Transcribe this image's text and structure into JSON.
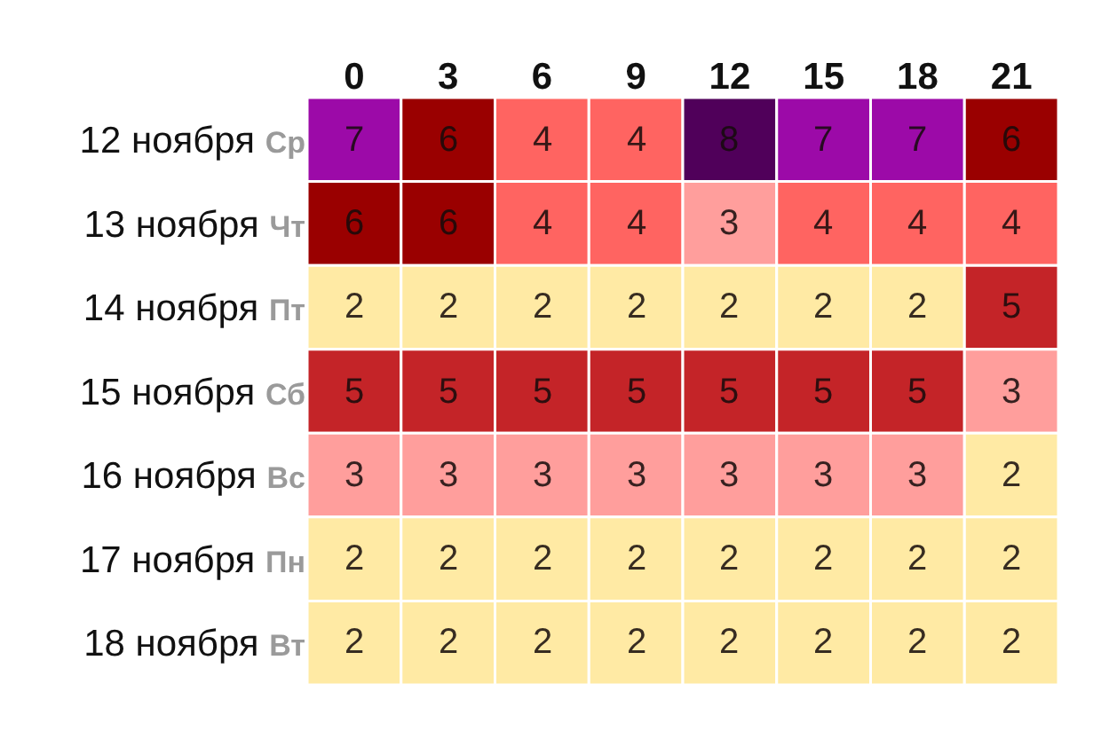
{
  "chart_data": {
    "type": "heatmap",
    "categories": [
      "0",
      "3",
      "6",
      "9",
      "12",
      "15",
      "18",
      "21"
    ],
    "y_categories": [
      "12 ноября",
      "13 ноября",
      "14 ноября",
      "15 ноября",
      "16 ноября",
      "17 ноября",
      "18 ноября"
    ],
    "y2_categories": [
      "Ср",
      "Чт",
      "Пт",
      "Сб",
      "Вс",
      "Пн",
      "Вт"
    ],
    "cells": [
      [
        7,
        6,
        4,
        4,
        8,
        7,
        7,
        6
      ],
      [
        6,
        6,
        4,
        4,
        3,
        4,
        4,
        4
      ],
      [
        2,
        2,
        2,
        2,
        2,
        2,
        2,
        5
      ],
      [
        5,
        5,
        5,
        5,
        5,
        5,
        5,
        3
      ],
      [
        3,
        3,
        3,
        3,
        3,
        3,
        3,
        2
      ],
      [
        2,
        2,
        2,
        2,
        2,
        2,
        2,
        2
      ],
      [
        2,
        2,
        2,
        2,
        2,
        2,
        2,
        2
      ]
    ],
    "colors": [
      [
        "#9c0aa8",
        "#9a0000",
        "#ff6461",
        "#ff6461",
        "#50005a",
        "#9c0aa8",
        "#9c0aa8",
        "#9a0000"
      ],
      [
        "#9a0000",
        "#9a0000",
        "#ff6461",
        "#ff6461",
        "#ff9e9c",
        "#ff6461",
        "#ff6461",
        "#ff6461"
      ],
      [
        "#ffeaa4",
        "#ffeaa4",
        "#ffeaa4",
        "#ffeaa4",
        "#ffeaa4",
        "#ffeaa4",
        "#ffeaa4",
        "#c42428"
      ],
      [
        "#c42428",
        "#c42428",
        "#c42428",
        "#c42428",
        "#c42428",
        "#c42428",
        "#c42428",
        "#ff9e9c"
      ],
      [
        "#ff9e9c",
        "#ff9e9c",
        "#ff9e9c",
        "#ff9e9c",
        "#ff9e9c",
        "#ff9e9c",
        "#ff9e9c",
        "#ffeaa4"
      ],
      [
        "#ffeaa4",
        "#ffeaa4",
        "#ffeaa4",
        "#ffeaa4",
        "#ffeaa4",
        "#ffeaa4",
        "#ffeaa4",
        "#ffeaa4"
      ],
      [
        "#ffeaa4",
        "#ffeaa4",
        "#ffeaa4",
        "#ffeaa4",
        "#ffeaa4",
        "#ffeaa4",
        "#ffeaa4",
        "#ffeaa4"
      ]
    ],
    "data_labels": true
  }
}
